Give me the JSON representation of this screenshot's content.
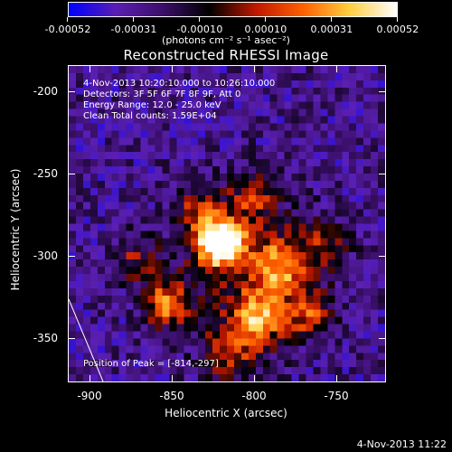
{
  "colorbar": {
    "labels": [
      "-0.00052",
      "-0.00031",
      "-0.00010",
      "0.00010",
      "0.00031",
      "0.00052"
    ],
    "units": "(photons cm⁻² s⁻¹ asec⁻²)"
  },
  "title": "Reconstructed RHESSI Image",
  "info": {
    "line1": "4-Nov-2013 10:20:10.000 to 10:26:10.000",
    "line2": "Detectors: 3F 5F 6F 7F 8F 9F, Att 0",
    "line3": "Energy Range: 12.0 - 25.0 keV",
    "line4": "Clean    Total counts: 1.59E+04"
  },
  "peak_label": "Position of Peak = [-814,-297]",
  "axes": {
    "x_title": "Heliocentric X (arcsec)",
    "y_title": "Heliocentric Y (arcsec)",
    "x_ticks": [
      "-900",
      "-850",
      "-800",
      "-750"
    ],
    "y_ticks": [
      "-200",
      "-250",
      "-300",
      "-350"
    ],
    "xlim": [
      -913,
      -720
    ],
    "ylim": [
      -378,
      -185
    ]
  },
  "timestamp": "4-Nov-2013 11:22",
  "colors": {
    "background": "#000000",
    "colormap": [
      "#0000ff",
      "#5a1fb4",
      "#3b0f6a",
      "#000000",
      "#c01800",
      "#ff6000",
      "#ffd040",
      "#ffffff"
    ]
  }
}
